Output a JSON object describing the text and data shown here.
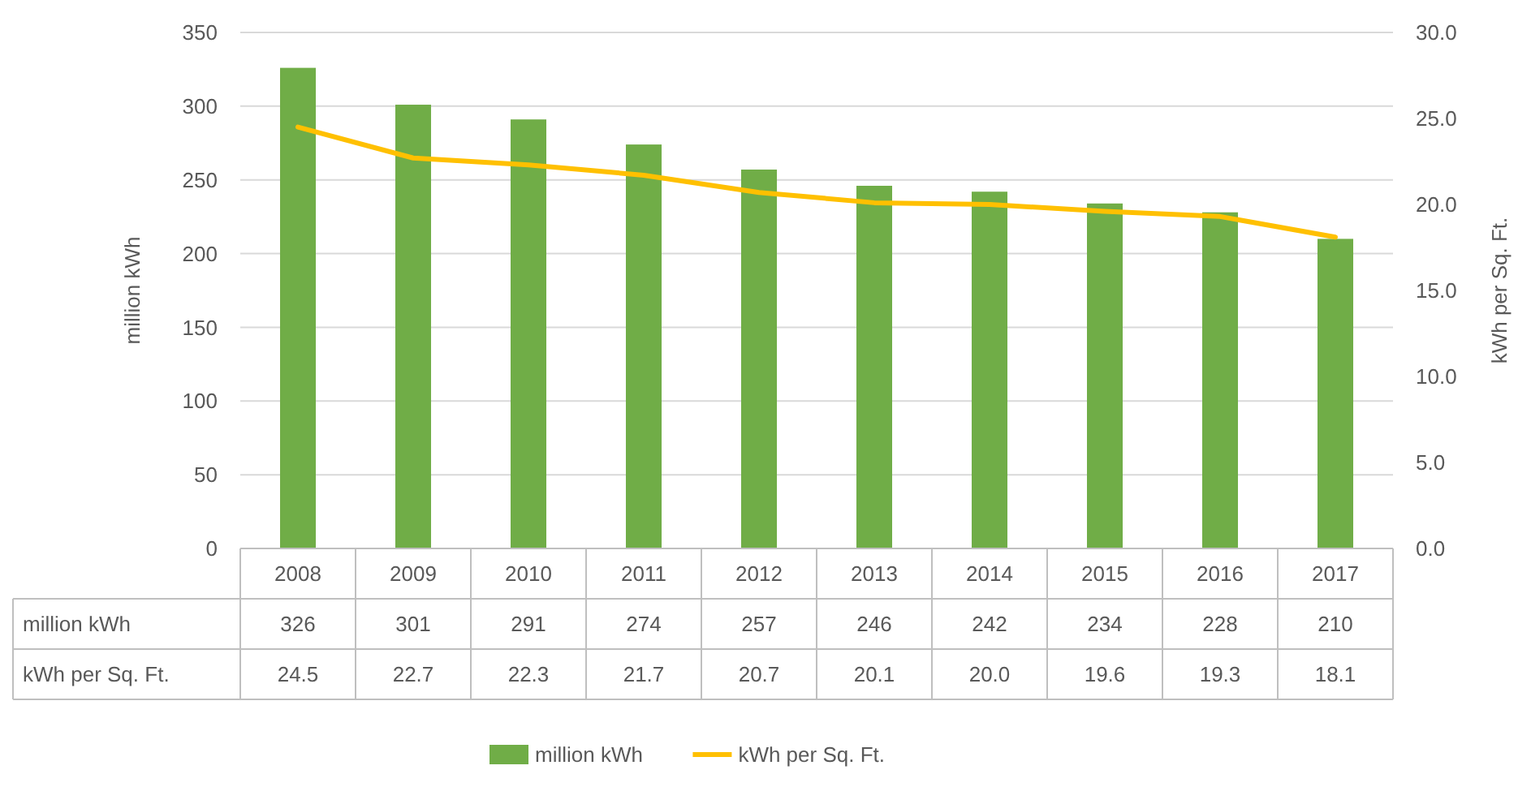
{
  "chart_data": {
    "type": "bar",
    "ylabel": "million kWh",
    "y2label": "kWh per Sq. Ft.",
    "categories": [
      "2008",
      "2009",
      "2010",
      "2011",
      "2012",
      "2013",
      "2014",
      "2015",
      "2016",
      "2017"
    ],
    "series": [
      {
        "name": "million kWh",
        "color": "#70ad47",
        "values": [
          326,
          301,
          291,
          274,
          257,
          246,
          242,
          234,
          228,
          210
        ],
        "value_labels": [
          "326",
          "301",
          "291",
          "274",
          "257",
          "246",
          "242",
          "234",
          "228",
          "210"
        ]
      },
      {
        "name": "kWh per Sq. Ft.",
        "type": "line",
        "axis": "y2",
        "color": "#ffc000",
        "values": [
          24.5,
          22.7,
          22.3,
          21.7,
          20.7,
          20.1,
          20.0,
          19.6,
          19.3,
          18.1
        ],
        "value_labels": [
          "24.5",
          "22.7",
          "22.3",
          "21.7",
          "20.7",
          "20.1",
          "20.0",
          "19.6",
          "19.3",
          "18.1"
        ]
      }
    ],
    "ylim": [
      0,
      350
    ],
    "yticks": [
      0,
      50,
      100,
      150,
      200,
      250,
      300,
      350
    ],
    "y2lim": [
      0,
      30
    ],
    "y2ticks": [
      {
        "value": 0,
        "label": "0.0"
      },
      {
        "value": 5,
        "label": "5.0"
      },
      {
        "value": 10,
        "label": "10.0"
      },
      {
        "value": 15,
        "label": "15.0"
      },
      {
        "value": 20,
        "label": "20.0"
      },
      {
        "value": 25,
        "label": "25.0"
      },
      {
        "value": 30,
        "label": "30.0"
      }
    ],
    "grid": "y",
    "legend": "bottom",
    "line_style": "solid",
    "marker": "none"
  }
}
